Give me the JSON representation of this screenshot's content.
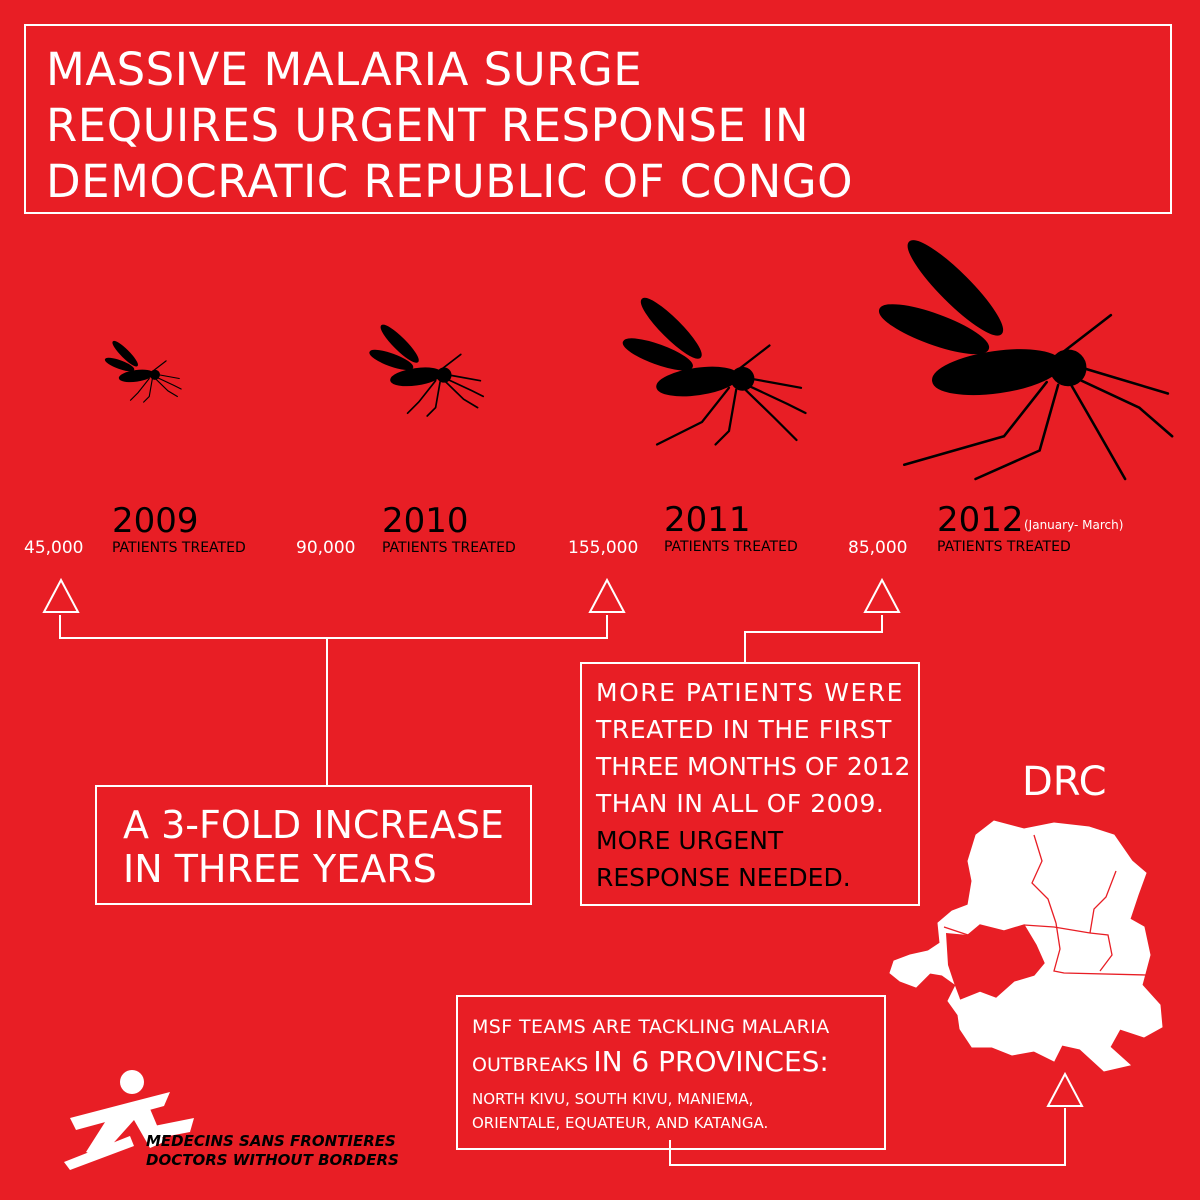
{
  "title": {
    "line1": "MASSIVE MALARIA SURGE",
    "line2": "REQUIRES URGENT RESPONSE IN",
    "line3": "DEMOCRATIC REPUBLIC OF CONGO"
  },
  "timeline": [
    {
      "year": "2009",
      "count": "45,000",
      "label": "PATIENTS TREATED",
      "note": ""
    },
    {
      "year": "2010",
      "count": "90,000",
      "label": "PATIENTS TREATED",
      "note": ""
    },
    {
      "year": "2011",
      "count": "155,000",
      "label": "PATIENTS TREATED",
      "note": ""
    },
    {
      "year": "2012",
      "count": "85,000",
      "label": "PATIENTS TREATED",
      "note": "(January- March)"
    }
  ],
  "increase_box": {
    "line1": "A 3-FOLD INCREASE",
    "line2": "IN THREE YEARS"
  },
  "comparison_box": {
    "line1": "MORE PATIENTS WERE",
    "line2": "TREATED IN THE FIRST",
    "line3": "THREE MONTHS OF 2012",
    "line4": "THAN IN ALL OF 2009.",
    "line5": "MORE URGENT",
    "line6": "RESPONSE NEEDED."
  },
  "map": {
    "label": "DRC"
  },
  "provinces_box": {
    "line1": "MSF TEAMS ARE TACKLING MALARIA",
    "line2_prefix": "OUTBREAKS",
    "line2_emph": "IN 6 PROVINCES:",
    "line3": "NORTH KIVU, SOUTH KIVU, MANIEMA,",
    "line4": "ORIENTALE, EQUATEUR, AND KATANGA."
  },
  "logo": {
    "line1": "MEDECINS SANS FRONTIERES",
    "line2": "DOCTORS WITHOUT BORDERS"
  },
  "colors": {
    "background": "#e81e25",
    "foreground": "#ffffff",
    "ink": "#000000"
  },
  "icons": [
    "mosquito-icon",
    "triangle-arrow-icon",
    "msf-logo-icon",
    "drc-map-icon"
  ]
}
